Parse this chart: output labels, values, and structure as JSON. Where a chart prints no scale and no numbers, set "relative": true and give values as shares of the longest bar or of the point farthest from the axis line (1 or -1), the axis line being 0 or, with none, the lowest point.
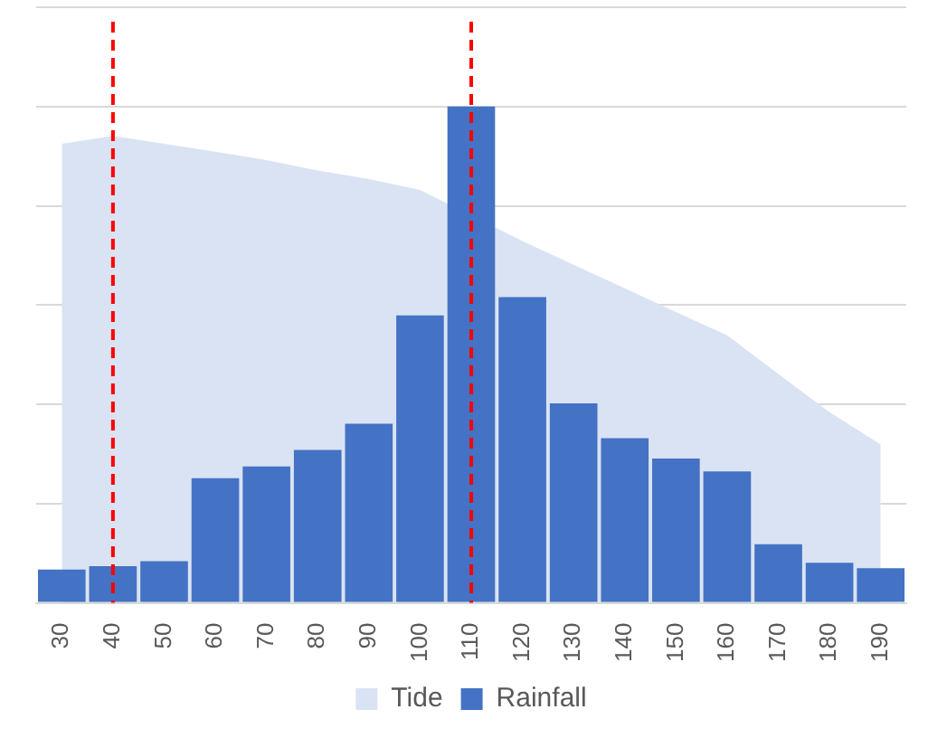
{
  "chart_data": {
    "type": "bar",
    "relative": true,
    "categories": [
      "30",
      "40",
      "50",
      "60",
      "70",
      "80",
      "90",
      "100",
      "110",
      "120",
      "130",
      "140",
      "150",
      "160",
      "170",
      "180",
      "190"
    ],
    "series": [
      {
        "name": "Tide",
        "type": "area",
        "color": "#dae3f3",
        "values": [
          0.925,
          0.941,
          0.925,
          0.909,
          0.892,
          0.871,
          0.854,
          0.832,
          null,
          0.729,
          0.681,
          0.634,
          0.586,
          0.539,
          0.461,
          0.384,
          0.319
        ]
      },
      {
        "name": "Rainfall",
        "color": "#4472c4",
        "values": [
          0.067,
          0.074,
          0.084,
          0.251,
          0.275,
          0.308,
          0.361,
          0.579,
          1,
          0.616,
          0.402,
          0.332,
          0.291,
          0.265,
          0.118,
          0.081,
          0.07
        ]
      }
    ],
    "ref_lines": [
      {
        "axis": "x",
        "value": "40",
        "color": "#ff0000",
        "line_style": "dashed"
      },
      {
        "axis": "x",
        "value": "110",
        "color": "#ff0000",
        "line_style": "dashed"
      }
    ],
    "grid": "y",
    "legend": "bottom"
  }
}
